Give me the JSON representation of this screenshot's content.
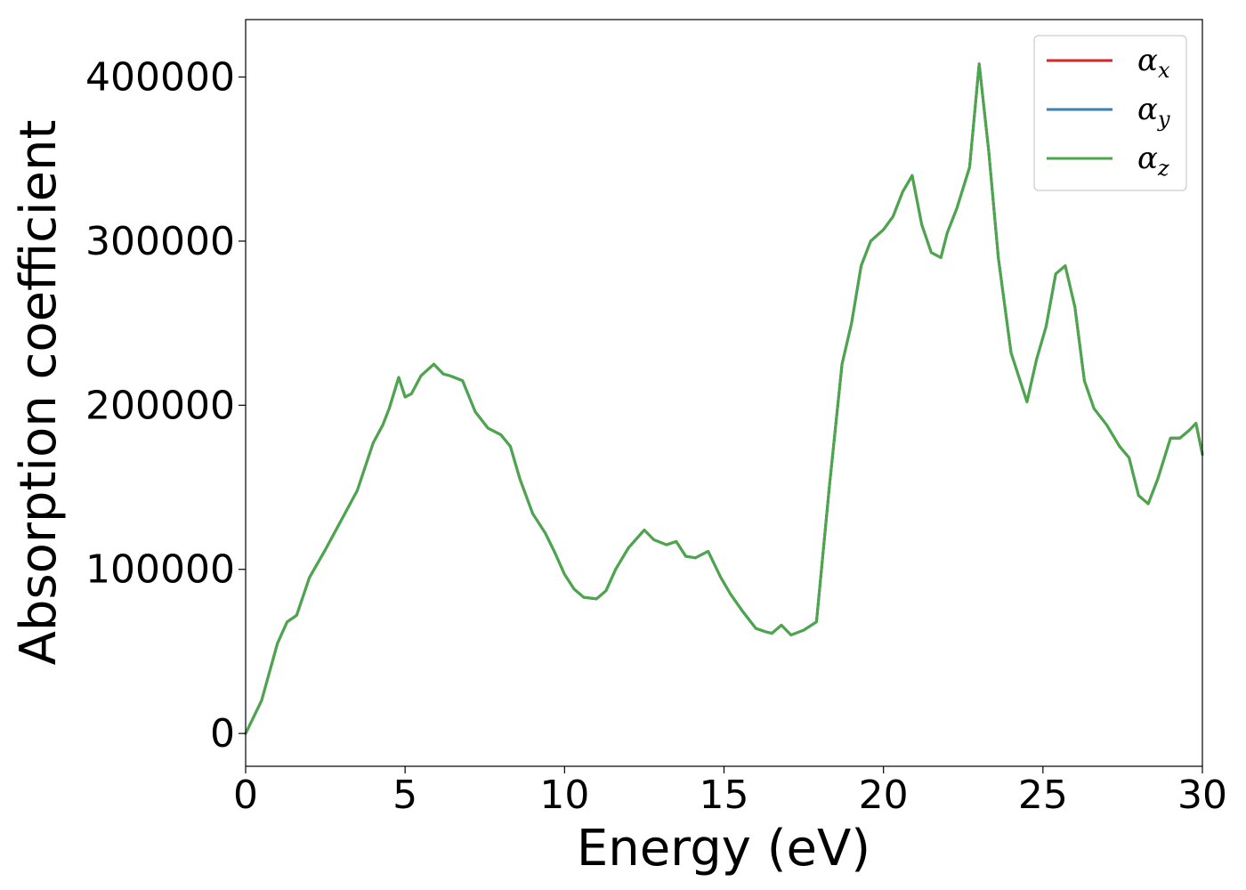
{
  "chart_data": {
    "type": "line",
    "title": "",
    "xlabel": "Energy (eV)",
    "ylabel": "Absorption coefficient",
    "xlim": [
      0,
      30
    ],
    "ylim": [
      -20000,
      435000
    ],
    "xticks": [
      0,
      5,
      10,
      15,
      20,
      25,
      30
    ],
    "yticks": [
      0,
      100000,
      200000,
      300000,
      400000
    ],
    "grid": false,
    "legend": {
      "placement": "top-right",
      "entries": [
        {
          "symbol": "α",
          "sub": "x",
          "color": "#d62728"
        },
        {
          "symbol": "α",
          "sub": "y",
          "color": "#3a7fb5"
        },
        {
          "symbol": "α",
          "sub": "z",
          "color": "#4aa84a"
        }
      ]
    },
    "x": [
      0,
      0.5,
      1.0,
      1.3,
      1.6,
      2.0,
      2.5,
      3.0,
      3.5,
      4.0,
      4.3,
      4.5,
      4.8,
      5.0,
      5.2,
      5.5,
      5.9,
      6.2,
      6.4,
      6.8,
      7.2,
      7.6,
      8.0,
      8.3,
      8.6,
      9.0,
      9.4,
      9.7,
      10.0,
      10.3,
      10.6,
      11.0,
      11.3,
      11.6,
      12.0,
      12.5,
      12.8,
      13.2,
      13.5,
      13.8,
      14.1,
      14.5,
      14.9,
      15.2,
      15.6,
      16.0,
      16.3,
      16.5,
      16.8,
      17.1,
      17.5,
      17.9,
      18.3,
      18.7,
      19.0,
      19.3,
      19.6,
      20.0,
      20.3,
      20.6,
      20.9,
      21.2,
      21.5,
      21.8,
      22.0,
      22.3,
      22.7,
      23.0,
      23.3,
      23.6,
      24.0,
      24.5,
      24.8,
      25.1,
      25.4,
      25.7,
      26.0,
      26.3,
      26.6,
      27.0,
      27.4,
      27.7,
      28.0,
      28.3,
      28.6,
      29.0,
      29.3,
      29.6,
      29.8,
      30.0
    ],
    "series": [
      {
        "values": [
          0,
          20000,
          55000,
          68000,
          72000,
          95000,
          112000,
          130000,
          148000,
          177000,
          188000,
          198000,
          217000,
          205000,
          207000,
          218000,
          225000,
          219000,
          218000,
          215000,
          196000,
          186000,
          182000,
          175000,
          155000,
          134000,
          122000,
          110000,
          97000,
          88000,
          83000,
          82000,
          87000,
          100000,
          113000,
          124000,
          118000,
          115000,
          117000,
          108000,
          107000,
          111000,
          95000,
          85000,
          74000,
          64000,
          62000,
          61000,
          66000,
          60000,
          63000,
          68000,
          150000,
          225000,
          250000,
          285000,
          300000,
          307000,
          315000,
          330000,
          340000,
          310000,
          293000,
          290000,
          305000,
          320000,
          345000,
          408000,
          355000,
          290000,
          232000,
          202000,
          228000,
          248000,
          280000,
          285000,
          260000,
          215000,
          198000,
          188000,
          175000,
          168000,
          145000,
          140000,
          155000,
          180000,
          180000,
          185000,
          189000,
          170000
        ]
      },
      {
        "values": [
          0,
          20000,
          55000,
          68000,
          72000,
          95000,
          112000,
          130000,
          148000,
          177000,
          188000,
          198000,
          217000,
          205000,
          207000,
          218000,
          225000,
          219000,
          218000,
          215000,
          196000,
          186000,
          182000,
          175000,
          155000,
          134000,
          122000,
          110000,
          97000,
          88000,
          83000,
          82000,
          87000,
          100000,
          113000,
          124000,
          118000,
          115000,
          117000,
          108000,
          107000,
          111000,
          95000,
          85000,
          74000,
          64000,
          62000,
          61000,
          66000,
          60000,
          63000,
          68000,
          150000,
          225000,
          250000,
          285000,
          300000,
          307000,
          315000,
          330000,
          340000,
          310000,
          293000,
          290000,
          305000,
          320000,
          345000,
          408000,
          355000,
          290000,
          232000,
          202000,
          228000,
          248000,
          280000,
          285000,
          260000,
          215000,
          198000,
          188000,
          175000,
          168000,
          145000,
          140000,
          155000,
          180000,
          180000,
          185000,
          189000,
          170000
        ]
      },
      {
        "values": [
          0,
          20000,
          55000,
          68000,
          72000,
          95000,
          112000,
          130000,
          148000,
          177000,
          188000,
          198000,
          217000,
          205000,
          207000,
          218000,
          225000,
          219000,
          218000,
          215000,
          196000,
          186000,
          182000,
          175000,
          155000,
          134000,
          122000,
          110000,
          97000,
          88000,
          83000,
          82000,
          87000,
          100000,
          113000,
          124000,
          118000,
          115000,
          117000,
          108000,
          107000,
          111000,
          95000,
          85000,
          74000,
          64000,
          62000,
          61000,
          66000,
          60000,
          63000,
          68000,
          150000,
          225000,
          250000,
          285000,
          300000,
          307000,
          315000,
          330000,
          340000,
          310000,
          293000,
          290000,
          305000,
          320000,
          345000,
          408000,
          355000,
          290000,
          232000,
          202000,
          228000,
          248000,
          280000,
          285000,
          260000,
          215000,
          198000,
          188000,
          175000,
          168000,
          145000,
          140000,
          155000,
          180000,
          180000,
          185000,
          189000,
          170000
        ]
      }
    ]
  }
}
